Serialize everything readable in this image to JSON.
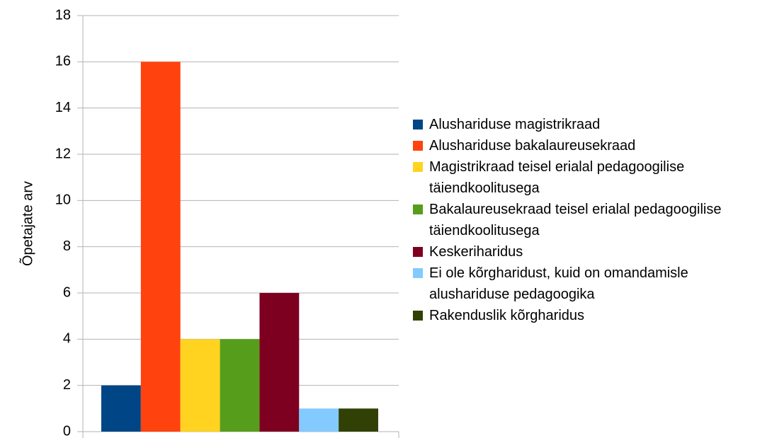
{
  "chart_data": {
    "type": "bar",
    "y_label": "Õpetajate arv",
    "categories": [
      null
    ],
    "series": [
      {
        "name": "Alushariduse magistrikraad",
        "color": "#004586",
        "values": [
          2
        ]
      },
      {
        "name": "Alushariduse bakalaureusekraad",
        "color": "#ff420e",
        "values": [
          16
        ]
      },
      {
        "name": "Magistrikraad teisel erialal pedagoogilise täiendkoolitusega",
        "color": "#ffd320",
        "values": [
          4
        ]
      },
      {
        "name": "Bakalaureusekraad teisel erialal pedagoogilise täiendkoolitusega",
        "color": "#579d1c",
        "values": [
          4
        ]
      },
      {
        "name": "Keskeriharidus",
        "color": "#7e0021",
        "values": [
          6
        ]
      },
      {
        "name": "Ei ole kõrgharidust, kuid on omandamisle alushariduse pedagoogika",
        "color": "#83caff",
        "values": [
          1
        ]
      },
      {
        "name": "Rakenduslik kõrgharidus",
        "color": "#314004",
        "values": [
          1
        ]
      }
    ],
    "ylim": [
      0,
      18
    ],
    "yticks": [
      0,
      2,
      4,
      6,
      8,
      10,
      12,
      14,
      16,
      18
    ],
    "grid": true,
    "legend": "right"
  }
}
